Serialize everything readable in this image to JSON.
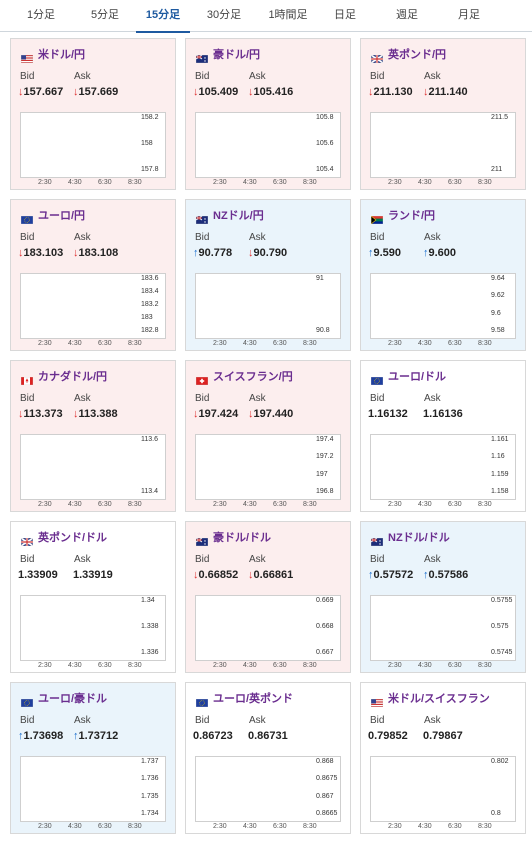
{
  "tabs": [
    {
      "label": "1分足"
    },
    {
      "label": "5分足"
    },
    {
      "label": "15分足"
    },
    {
      "label": "30分足"
    },
    {
      "label": "1時間足"
    },
    {
      "label": "日足"
    },
    {
      "label": "週足"
    },
    {
      "label": "月足"
    }
  ],
  "active_tab": "15分足",
  "labels": {
    "bid": "Bid",
    "ask": "Ask"
  },
  "colors": {
    "down_bg": "#fceeee",
    "up_bg": "#eaf4fb",
    "bull": "#e03131",
    "bear": "#1f3fbf",
    "ma": "#cc33cc",
    "ma2": "#33aadd",
    "pair_title": "#6a2d8f"
  },
  "pairs": [
    {
      "name": "米ドル/円",
      "flag": "us-jp-flag-icon",
      "bid": "157.667",
      "ask": "157.669",
      "bid_dir": "down",
      "ask_dir": "down",
      "trend": "down",
      "chart_data": {
        "type": "candlestick",
        "x_ticks": [
          "2:30",
          "4:30",
          "6:30",
          "8:30"
        ],
        "y_ticks": [
          "158.2",
          "158",
          "157.8"
        ],
        "ylim": [
          157.6,
          158.3
        ]
      }
    },
    {
      "name": "豪ドル/円",
      "flag": "au-jp-flag-icon",
      "bid": "105.409",
      "ask": "105.416",
      "bid_dir": "down",
      "ask_dir": "down",
      "trend": "down",
      "chart_data": {
        "type": "candlestick",
        "x_ticks": [
          "2:30",
          "4:30",
          "6:30",
          "8:30"
        ],
        "y_ticks": [
          "105.8",
          "105.6",
          "105.4"
        ],
        "ylim": [
          105.3,
          105.9
        ]
      }
    },
    {
      "name": "英ポンド/円",
      "flag": "gb-jp-flag-icon",
      "bid": "211.130",
      "ask": "211.140",
      "bid_dir": "down",
      "ask_dir": "down",
      "trend": "down",
      "chart_data": {
        "type": "candlestick",
        "x_ticks": [
          "2:30",
          "4:30",
          "6:30",
          "8:30"
        ],
        "y_ticks": [
          "211.5",
          "211"
        ],
        "ylim": [
          210.9,
          211.7
        ]
      }
    },
    {
      "name": "ユーロ/円",
      "flag": "eu-jp-flag-icon",
      "bid": "183.103",
      "ask": "183.108",
      "bid_dir": "down",
      "ask_dir": "down",
      "trend": "down",
      "chart_data": {
        "type": "candlestick",
        "x_ticks": [
          "2:30",
          "4:30",
          "6:30",
          "8:30"
        ],
        "y_ticks": [
          "183.6",
          "183.4",
          "183.2",
          "183",
          "182.8"
        ],
        "ylim": [
          182.7,
          183.7
        ]
      }
    },
    {
      "name": "NZドル/円",
      "flag": "nz-jp-flag-icon",
      "bid": "90.778",
      "ask": "90.790",
      "bid_dir": "up",
      "ask_dir": "down",
      "trend": "up",
      "chart_data": {
        "type": "candlestick",
        "x_ticks": [
          "2:30",
          "4:30",
          "6:30",
          "8:30"
        ],
        "y_ticks": [
          "91",
          "90.8"
        ],
        "ylim": [
          90.6,
          91.1
        ]
      }
    },
    {
      "name": "ランド/円",
      "flag": "za-jp-flag-icon",
      "bid": "9.590",
      "ask": "9.600",
      "bid_dir": "up",
      "ask_dir": "up",
      "trend": "up",
      "chart_data": {
        "type": "candlestick",
        "x_ticks": [
          "2:30",
          "4:30",
          "6:30",
          "8:30"
        ],
        "y_ticks": [
          "9.64",
          "9.62",
          "9.6",
          "9.58"
        ],
        "ylim": [
          9.57,
          9.65
        ]
      }
    },
    {
      "name": "カナダドル/円",
      "flag": "ca-jp-flag-icon",
      "bid": "113.373",
      "ask": "113.388",
      "bid_dir": "down",
      "ask_dir": "down",
      "trend": "down",
      "chart_data": {
        "type": "candlestick",
        "x_ticks": [
          "2:30",
          "4:30",
          "6:30",
          "8:30"
        ],
        "y_ticks": [
          "113.6",
          "113.4"
        ],
        "ylim": [
          113.3,
          113.8
        ]
      }
    },
    {
      "name": "スイスフラン/円",
      "flag": "ch-jp-flag-icon",
      "bid": "197.424",
      "ask": "197.440",
      "bid_dir": "down",
      "ask_dir": "down",
      "trend": "down",
      "chart_data": {
        "type": "candlestick",
        "x_ticks": [
          "2:30",
          "4:30",
          "6:30",
          "8:30"
        ],
        "y_ticks": [
          "197.4",
          "197.2",
          "197",
          "196.8"
        ],
        "ylim": [
          196.7,
          197.5
        ]
      }
    },
    {
      "name": "ユーロ/ドル",
      "flag": "eu-us-flag-icon",
      "bid": "1.16132",
      "ask": "1.16136",
      "bid_dir": "none",
      "ask_dir": "none",
      "trend": "neutral",
      "chart_data": {
        "type": "candlestick",
        "x_ticks": [
          "2:30",
          "4:30",
          "6:30",
          "8:30"
        ],
        "y_ticks": [
          "1.161",
          "1.16",
          "1.159",
          "1.158"
        ],
        "ylim": [
          1.1575,
          1.1615
        ]
      }
    },
    {
      "name": "英ポンド/ドル",
      "flag": "gb-us-flag-icon",
      "bid": "1.33909",
      "ask": "1.33919",
      "bid_dir": "none",
      "ask_dir": "none",
      "trend": "neutral",
      "chart_data": {
        "type": "candlestick",
        "x_ticks": [
          "2:30",
          "4:30",
          "6:30",
          "8:30"
        ],
        "y_ticks": [
          "1.34",
          "1.338",
          "1.336"
        ],
        "ylim": [
          1.335,
          1.3405
        ]
      }
    },
    {
      "name": "豪ドル/ドル",
      "flag": "au-us-flag-icon",
      "bid": "0.66852",
      "ask": "0.66861",
      "bid_dir": "down",
      "ask_dir": "down",
      "trend": "down",
      "chart_data": {
        "type": "candlestick",
        "x_ticks": [
          "2:30",
          "4:30",
          "6:30",
          "8:30"
        ],
        "y_ticks": [
          "0.669",
          "0.668",
          "0.667"
        ],
        "ylim": [
          0.6665,
          0.6695
        ]
      }
    },
    {
      "name": "NZドル/ドル",
      "flag": "nz-us-flag-icon",
      "bid": "0.57572",
      "ask": "0.57586",
      "bid_dir": "up",
      "ask_dir": "up",
      "trend": "up",
      "chart_data": {
        "type": "candlestick",
        "x_ticks": [
          "2:30",
          "4:30",
          "6:30",
          "8:30"
        ],
        "y_ticks": [
          "0.5755",
          "0.575",
          "0.5745"
        ],
        "ylim": [
          0.5742,
          0.5758
        ]
      }
    },
    {
      "name": "ユーロ/豪ドル",
      "flag": "eu-au-flag-icon",
      "bid": "1.73698",
      "ask": "1.73712",
      "bid_dir": "up",
      "ask_dir": "up",
      "trend": "up",
      "chart_data": {
        "type": "candlestick",
        "x_ticks": [
          "2:30",
          "4:30",
          "6:30",
          "8:30"
        ],
        "y_ticks": [
          "1.737",
          "1.736",
          "1.735",
          "1.734"
        ],
        "ylim": [
          1.7335,
          1.7375
        ]
      }
    },
    {
      "name": "ユーロ/英ポンド",
      "flag": "eu-gb-flag-icon",
      "bid": "0.86723",
      "ask": "0.86731",
      "bid_dir": "none",
      "ask_dir": "none",
      "trend": "neutral",
      "chart_data": {
        "type": "candlestick",
        "x_ticks": [
          "2:30",
          "4:30",
          "6:30",
          "8:30"
        ],
        "y_ticks": [
          "0.868",
          "0.8675",
          "0.867",
          "0.8665"
        ],
        "ylim": [
          0.8662,
          0.8683
        ]
      }
    },
    {
      "name": "米ドル/スイスフラン",
      "flag": "us-ch-flag-icon",
      "bid": "0.79852",
      "ask": "0.79867",
      "bid_dir": "none",
      "ask_dir": "none",
      "trend": "neutral",
      "chart_data": {
        "type": "candlestick",
        "x_ticks": [
          "2:30",
          "4:30",
          "6:30",
          "8:30"
        ],
        "y_ticks": [
          "0.802",
          "0.8"
        ],
        "ylim": [
          0.7985,
          0.803
        ]
      }
    }
  ]
}
